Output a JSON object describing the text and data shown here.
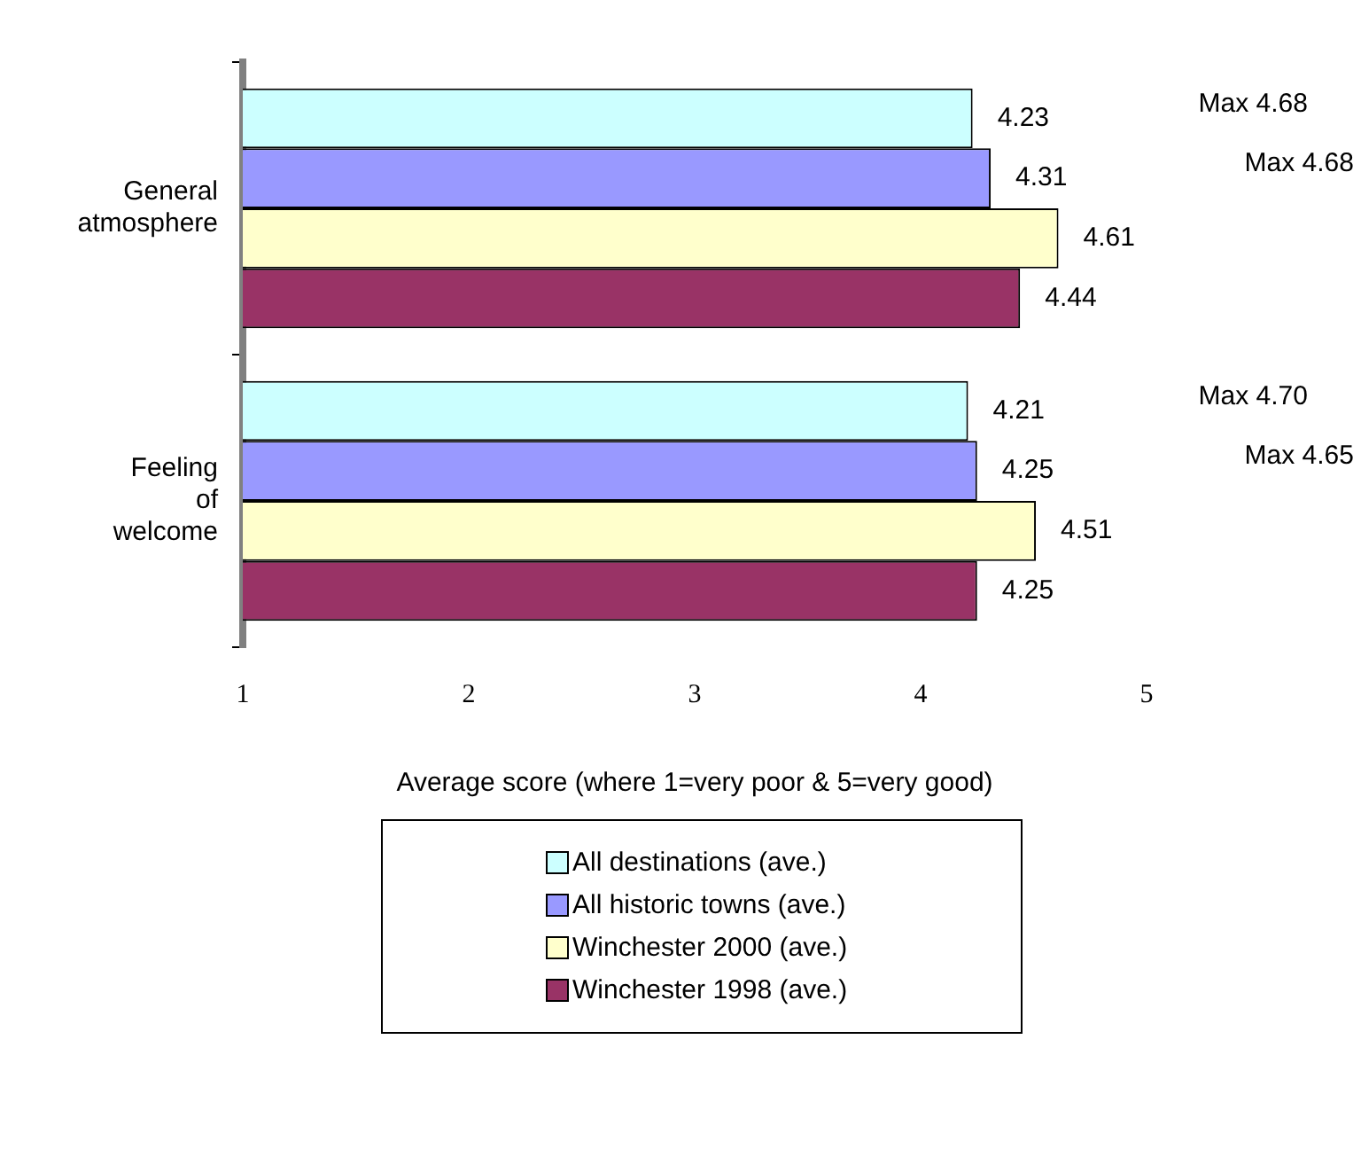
{
  "chart_data": {
    "type": "bar",
    "orientation": "horizontal",
    "categories": [
      "General atmosphere",
      "Feeling of welcome"
    ],
    "series": [
      {
        "name": "All destinations (ave.)",
        "color": "#ccffff",
        "values": [
          4.23,
          4.21
        ]
      },
      {
        "name": "All historic towns (ave.)",
        "color": "#9999ff",
        "values": [
          4.31,
          4.25
        ]
      },
      {
        "name": "Winchester 2000 (ave.)",
        "color": "#ffffcc",
        "values": [
          4.61,
          4.51
        ]
      },
      {
        "name": "Winchester 1998 (ave.)",
        "color": "#993366",
        "values": [
          4.44,
          4.25
        ]
      }
    ],
    "xlim": [
      1,
      5
    ],
    "xticks": [
      1,
      2,
      3,
      4,
      5
    ],
    "xlabel": "Average score (where 1=very poor & 5=very good)",
    "data_labels": true,
    "grid": false,
    "legend": "bottom",
    "annotations": [
      "Max 4.68",
      "Max 4.68",
      "Max 4.70",
      "Max 4.65"
    ]
  }
}
